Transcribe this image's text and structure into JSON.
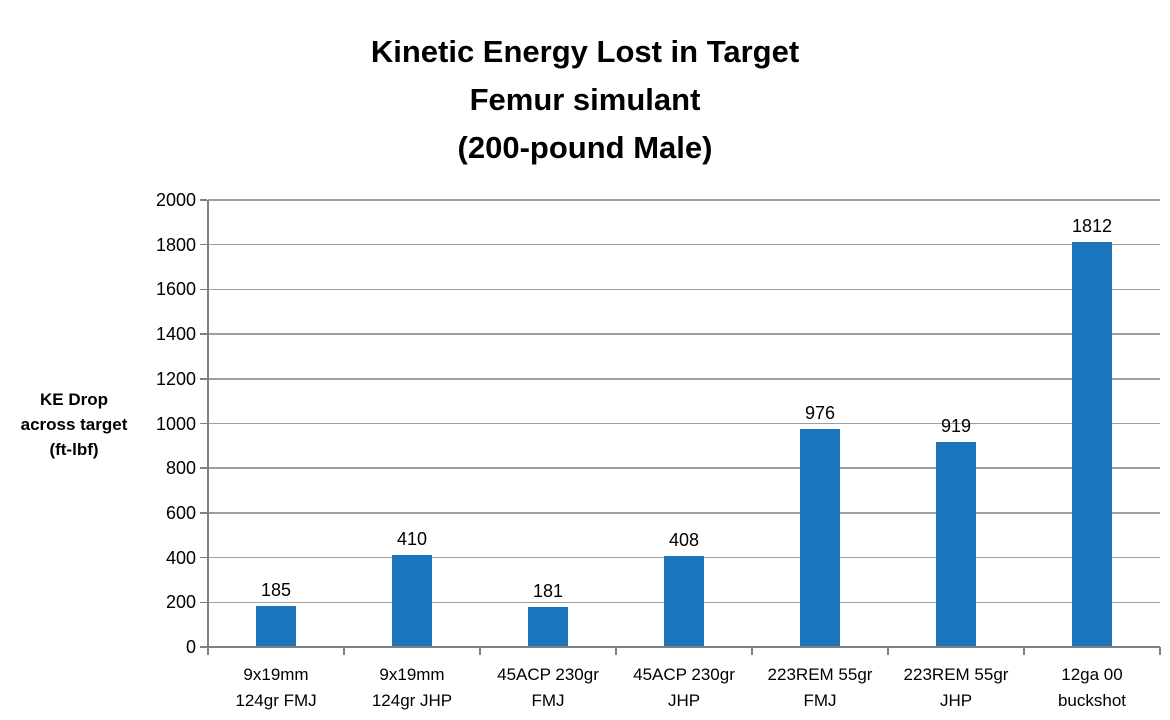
{
  "chart_data": {
    "type": "bar",
    "title": "Kinetic Energy Lost in Target\nFemur simulant\n(200-pound Male)",
    "ylabel": "KE Drop\nacross target\n(ft-lbf)",
    "xlabel": "",
    "categories": [
      "9x19mm\n124gr FMJ",
      "9x19mm\n124gr JHP",
      "45ACP 230gr\nFMJ",
      "45ACP 230gr\nJHP",
      "223REM 55gr\nFMJ",
      "223REM 55gr\nJHP",
      "12ga 00\nbuckshot"
    ],
    "values": [
      185,
      410,
      181,
      408,
      976,
      919,
      1812
    ],
    "data_labels": [
      "185",
      "410",
      "181",
      "408",
      "976",
      "919",
      "1812"
    ],
    "ylim": [
      0,
      2000
    ],
    "ytick_step": 200,
    "yticks": [
      0,
      200,
      400,
      600,
      800,
      1000,
      1200,
      1400,
      1600,
      1800,
      2000
    ],
    "grid": true,
    "legend_position": "none",
    "colors": {
      "bar": "#1B75BC",
      "gridline": "#9E9E9E",
      "axis": "#808080",
      "text": "#000000",
      "background": "#FFFFFF"
    }
  }
}
